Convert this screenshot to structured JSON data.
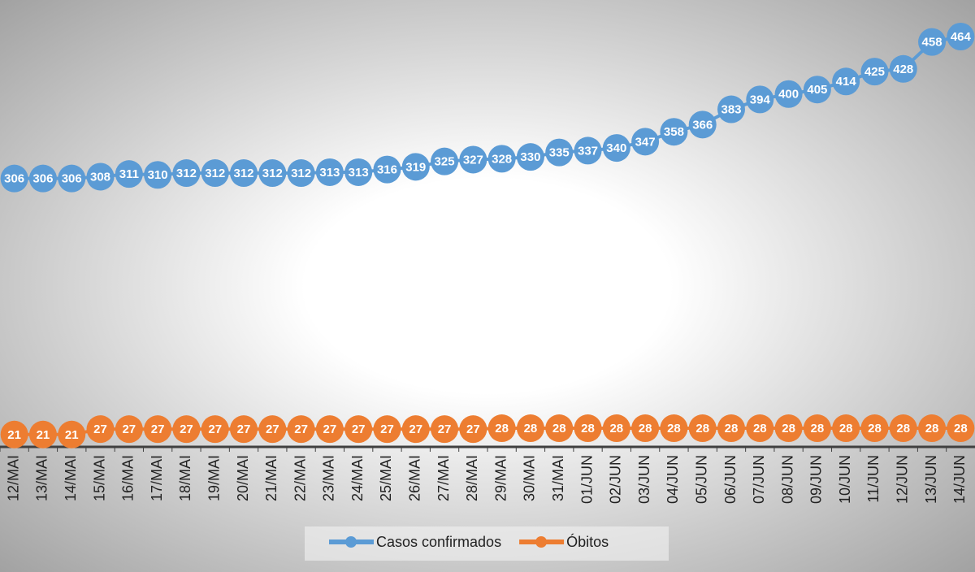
{
  "chart_data": {
    "type": "line",
    "categories": [
      "12/MAI",
      "13/MAI",
      "14/MAI",
      "15/MAI",
      "16/MAI",
      "17/MAI",
      "18/MAI",
      "19/MAI",
      "20/MAI",
      "21/MAI",
      "22/MAI",
      "23/MAI",
      "24/MAI",
      "25/MAI",
      "26/MAI",
      "27/MAI",
      "28/MAI",
      "29/MAI",
      "30/MAI",
      "31/MAI",
      "01/JUN",
      "02/JUN",
      "03/JUN",
      "04/JUN",
      "05/JUN",
      "06/JUN",
      "07/JUN",
      "08/JUN",
      "09/JUN",
      "10/JUN",
      "11/JUN",
      "12/JUN",
      "13/JUN",
      "14/JUN"
    ],
    "series": [
      {
        "name": "Casos confirmados",
        "color": "#5b9bd5",
        "values": [
          306,
          306,
          306,
          308,
          311,
          310,
          312,
          312,
          312,
          312,
          312,
          313,
          313,
          316,
          319,
          325,
          327,
          328,
          330,
          335,
          337,
          340,
          347,
          358,
          366,
          383,
          394,
          400,
          405,
          414,
          425,
          428,
          458,
          464
        ]
      },
      {
        "name": "Óbitos",
        "color": "#ed7d31",
        "values": [
          21,
          21,
          21,
          27,
          27,
          27,
          27,
          27,
          27,
          27,
          27,
          27,
          27,
          27,
          27,
          27,
          27,
          28,
          28,
          28,
          28,
          28,
          28,
          28,
          28,
          28,
          28,
          28,
          28,
          28,
          28,
          28,
          28,
          28
        ]
      }
    ],
    "legend": "bottom"
  }
}
